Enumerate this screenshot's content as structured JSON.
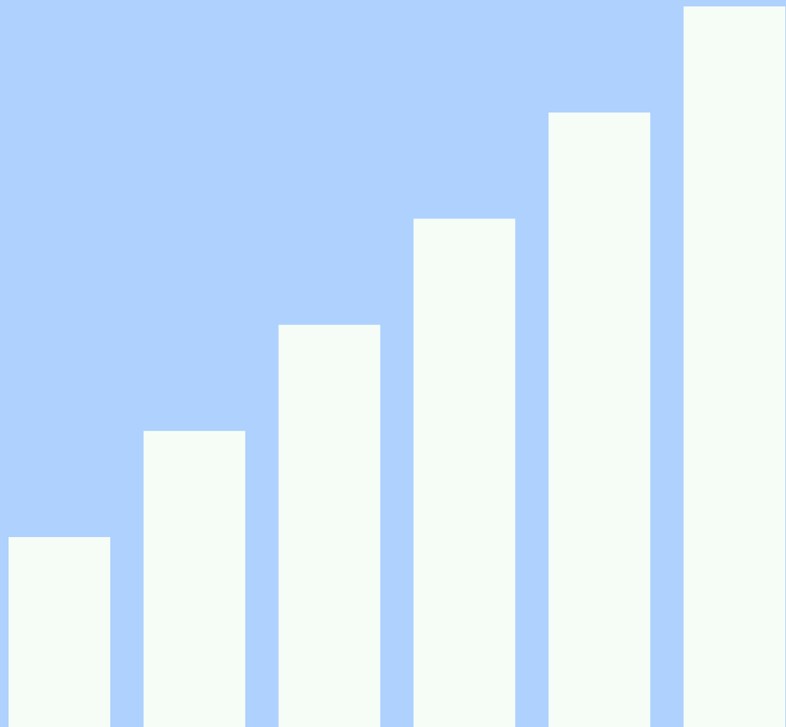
{
  "icon": {
    "name": "bar-chart-growth-icon",
    "bar_count": 6,
    "bar_levels": [
      1,
      2,
      3,
      4,
      5,
      6
    ],
    "colors": {
      "background": "#aed1fd",
      "bar_fill": "#f6fdf7"
    }
  }
}
